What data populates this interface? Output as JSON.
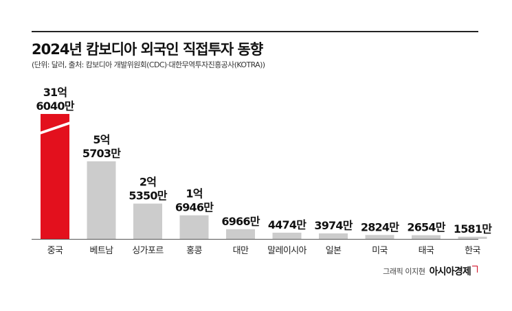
{
  "header": {
    "title": "2024년 캄보디아 외국인 직접투자 동향",
    "subtitle": "(단위: 달러, 출처: 캄보디아 개발위원회(CDC)·대한무역투자진흥공사(KOTRA))"
  },
  "footer": {
    "credit": "그래픽 이지현",
    "brand": "아시아경제"
  },
  "colors": {
    "highlight": "#e3101d",
    "bar": "#cccccc",
    "axis": "#555555"
  },
  "chart_data": {
    "type": "bar",
    "title": "2024년 캄보디아 외국인 직접투자 동향",
    "categories": [
      "중국",
      "베트남",
      "싱가포르",
      "홍콩",
      "대만",
      "말레이시아",
      "일본",
      "미국",
      "태국",
      "한국"
    ],
    "values": [
      3160400000,
      557030000,
      253500000,
      169460000,
      69660000,
      44740000,
      39740000,
      28240000,
      26540000,
      15810000
    ],
    "value_labels": [
      [
        "31억",
        "6040만"
      ],
      [
        "5억",
        "5703만"
      ],
      [
        "2억",
        "5350만"
      ],
      [
        "1억",
        "6946만"
      ],
      [
        "6966만"
      ],
      [
        "4474만"
      ],
      [
        "3974만"
      ],
      [
        "2824만"
      ],
      [
        "2654만"
      ],
      [
        "1581만"
      ]
    ],
    "highlight_index": 0,
    "broken_axis_index": 0,
    "xlabel": "",
    "ylabel": ""
  }
}
